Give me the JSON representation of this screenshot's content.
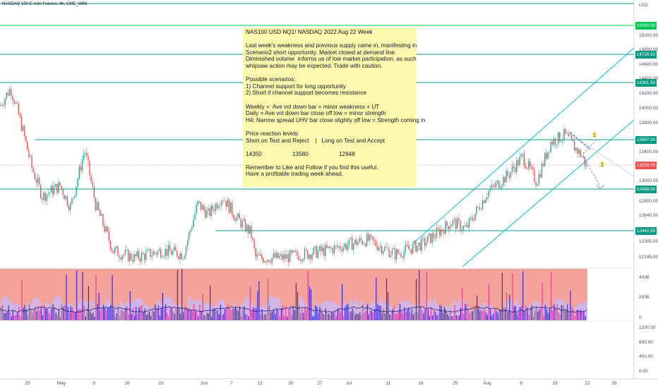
{
  "symbol_title": "NASDAQ 100 E-mini Futures, 4h, CME_MINI",
  "currency_label": "USD",
  "note_lines": [
    "NAS100 USD NQ1! NASDAQ 2022 Aug 22 Week",
    "",
    "Last week's weakness and previous supply came in, manifesting in",
    "Scenario2 short opportunity. Market closed at demand line.",
    "Diminished volume  informs us of low market participation, as such",
    "whipsaw action may be expected. Trade with caution.",
    "",
    "Possible scenarios:",
    "1) Channel support for long opportunity",
    "2) Short if channel support becomes resistance",
    "",
    "Weekly =  Ave vol down bar = minor weakness + UT",
    "Daily = Ave vol down bar close off low = minor strength",
    "H4: Narrow spread UHV bar close slightly off low = Strength coming in",
    "",
    "Price reaction levels:",
    "Short on Test and Reject    |   Long on Test and Accept",
    "",
    "14350                   13580                   12948",
    "",
    "Remember to Like and Follow if you find this useful.",
    "Have a profitable trading week ahead."
  ],
  "scenario_labels": [
    "1",
    "2"
  ],
  "colors": {
    "up": "#26a69a",
    "down": "#ef5350",
    "level_line": "#089981",
    "channel": "#00bcd4",
    "note_bg": "#fff9b0",
    "volume_panel_bg": "#f4a39b",
    "volume_bar": "#2c1de0",
    "projection": "#9598a1"
  },
  "chart_data": {
    "type": "candlestick",
    "timeframe": "4h",
    "x_tick_labels": [
      "25",
      "May",
      "9",
      "16",
      "23",
      "Jun",
      "7",
      "13",
      "20",
      "27",
      "Jul",
      "11",
      "18",
      "25",
      "Aug",
      "8",
      "15",
      "22",
      "26"
    ],
    "price_axis": {
      "tick_labels": [
        "15000.00",
        "14800.00",
        "14600.00",
        "14400.00",
        "14200.00",
        "14000.00",
        "13800.00",
        "13400.00",
        "13000.00",
        "12800.00",
        "12640.00",
        "12305.00",
        "12145.00"
      ],
      "range": [
        12040,
        15280
      ]
    },
    "volume_axis": {
      "tick_labels": [
        "400K",
        "200K",
        "0"
      ]
    },
    "indicator_axis": {
      "tick_labels": [
        "1200.00",
        "800.00",
        "400.00",
        "0.00"
      ]
    },
    "levels": [
      {
        "label": "15060.00",
        "color": "#00c853"
      },
      {
        "label": "14728.50",
        "color": "#089981"
      },
      {
        "label": "14361.50",
        "color": "#089981"
      },
      {
        "label": "13587.00",
        "color": "#089981"
      },
      {
        "label": "13250.00",
        "color": "#ef5350"
      },
      {
        "label": "12948.00",
        "color": "#089981"
      },
      {
        "label": "12442.50",
        "color": "#089981"
      }
    ]
  }
}
